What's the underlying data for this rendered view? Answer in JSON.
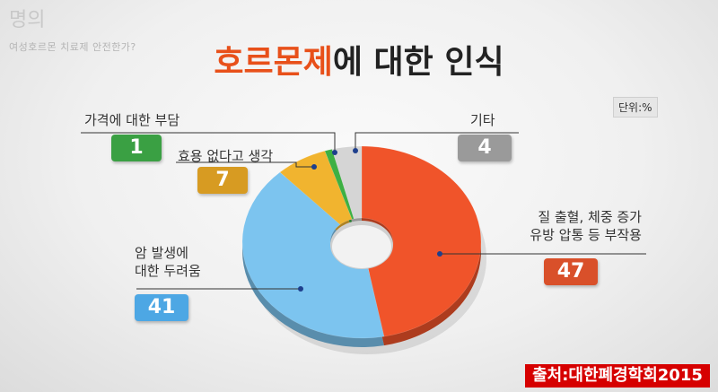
{
  "header": {
    "logo": "명의",
    "subtitle": "여성호르몬 치료제 안전한가?"
  },
  "title": {
    "highlight": "호르몬제",
    "rest": "에 대한 인식"
  },
  "unit": "단위:%",
  "source": "출처:대한폐경학회2015",
  "chart_data": {
    "type": "pie",
    "categories": [
      "질 출혈, 체중 증가 유방 압통 등 부작용",
      "암 발생에 대한 두려움",
      "효용 없다고 생각",
      "가격에 대한 부담",
      "기타"
    ],
    "values": [
      47,
      41,
      7,
      1,
      4
    ],
    "colors": [
      "#f0542a",
      "#7cc4ef",
      "#f1b42f",
      "#3db043",
      "#d5d5d5"
    ],
    "donut": true
  },
  "labels": {
    "side_effects_line1": "질 출혈, 체중 증가",
    "side_effects_line2": "유방 압통 등 부작용",
    "side_effects_value": "47",
    "cancer_line1": "암 발생에",
    "cancer_line2": "대한 두려움",
    "cancer_value": "41",
    "no_effect": "효용 없다고 생각",
    "no_effect_value": "7",
    "price": "가격에 대한 부담",
    "price_value": "1",
    "other": "기타",
    "other_value": "4"
  },
  "badge_colors": {
    "side_effects": "#d9502a",
    "cancer": "#4da7e4",
    "no_effect": "#d79b22",
    "price": "#3aa043",
    "other": "#9a9a9a"
  }
}
